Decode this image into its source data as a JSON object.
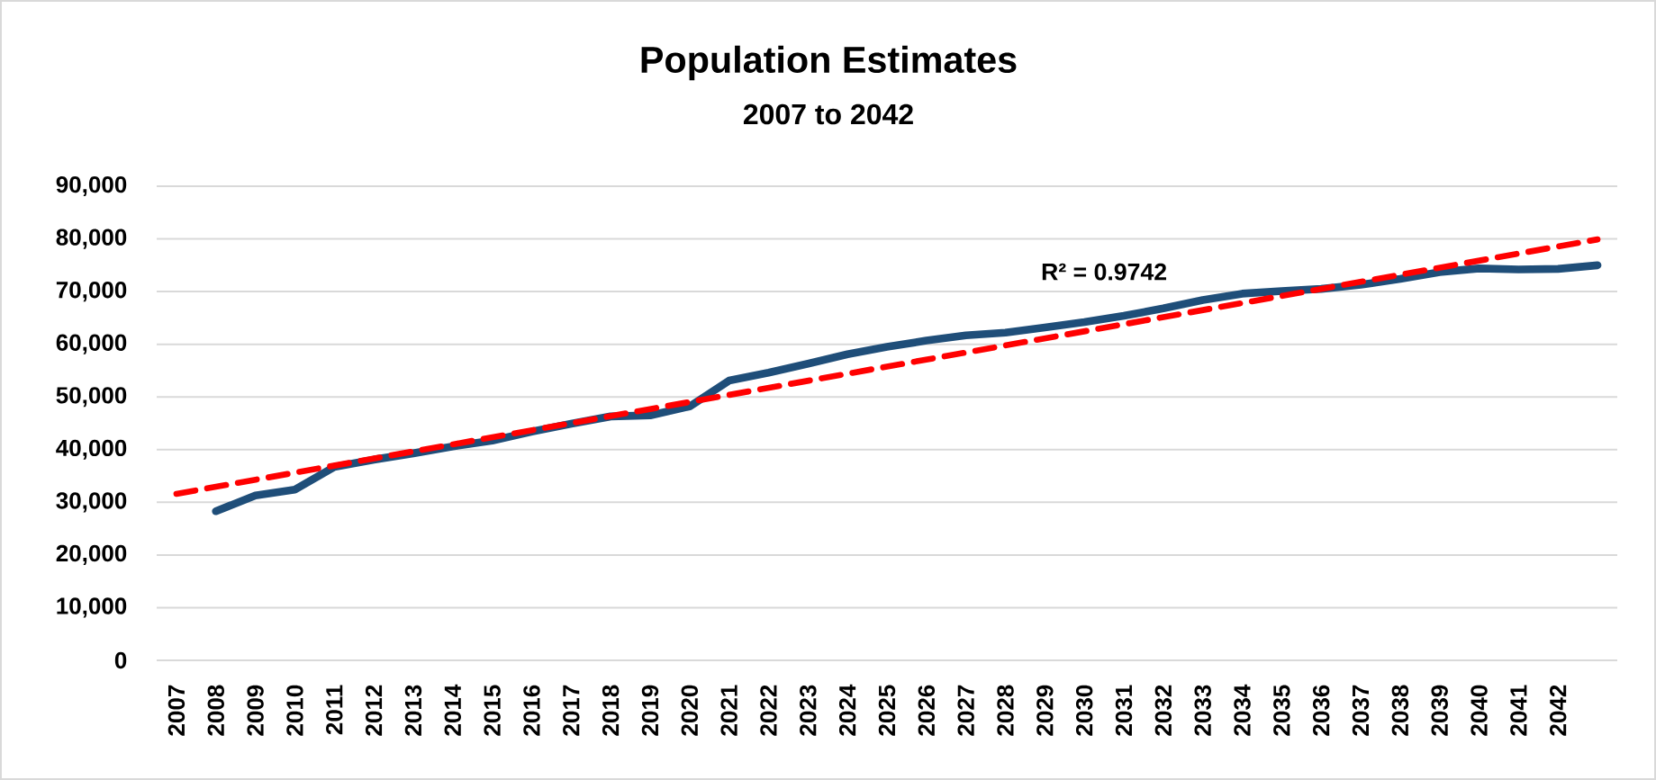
{
  "chart_data": {
    "type": "line",
    "title": "Population Estimates",
    "subtitle": "2007 to 2042",
    "x": [
      2008,
      2009,
      2010,
      2011,
      2012,
      2013,
      2014,
      2015,
      2016,
      2017,
      2018,
      2019,
      2020,
      2021,
      2022,
      2023,
      2024,
      2025,
      2026,
      2027,
      2028,
      2029,
      2030,
      2031,
      2032,
      2033,
      2034,
      2035,
      2036,
      2037,
      2038,
      2039,
      2040,
      2041,
      2042,
      2043
    ],
    "series": [
      {
        "color": "#1f4e79",
        "line_style": "solid",
        "values": [
          28300,
          31300,
          32400,
          36700,
          38100,
          39300,
          40600,
          41700,
          43400,
          44900,
          46300,
          46500,
          48200,
          53100,
          54600,
          56300,
          58100,
          59500,
          60700,
          61700,
          62200,
          63200,
          64200,
          65400,
          66800,
          68400,
          69600,
          70100,
          70500,
          71300,
          72400,
          73700,
          74400,
          74200,
          74300,
          75000
        ]
      },
      {
        "type": "line",
        "x": [
          2007,
          2043
        ],
        "values": [
          31600,
          79900
        ],
        "color": "#ff0000",
        "line_style": "dashed"
      }
    ],
    "xlim": [
      2006.5,
      2043.5
    ],
    "xticks": [
      2007,
      2008,
      2009,
      2010,
      2011,
      2012,
      2013,
      2014,
      2015,
      2016,
      2017,
      2018,
      2019,
      2020,
      2021,
      2022,
      2023,
      2024,
      2025,
      2026,
      2027,
      2028,
      2029,
      2030,
      2031,
      2032,
      2033,
      2034,
      2035,
      2036,
      2037,
      2038,
      2039,
      2040,
      2041,
      2042
    ],
    "ylim": [
      0,
      90000
    ],
    "yticks": [
      {
        "value": 0,
        "label": "0"
      },
      {
        "value": 10000,
        "label": "10,000"
      },
      {
        "value": 20000,
        "label": "20,000"
      },
      {
        "value": 30000,
        "label": "30,000"
      },
      {
        "value": 40000,
        "label": "40,000"
      },
      {
        "value": 50000,
        "label": "50,000"
      },
      {
        "value": 60000,
        "label": "60,000"
      },
      {
        "value": 70000,
        "label": "70,000"
      },
      {
        "value": 80000,
        "label": "80,000"
      },
      {
        "value": 90000,
        "label": "90,000"
      }
    ],
    "grid": "y",
    "annotations": [
      {
        "text": "R² = 0.9742",
        "x": 2030.5,
        "y": 64500
      }
    ]
  }
}
